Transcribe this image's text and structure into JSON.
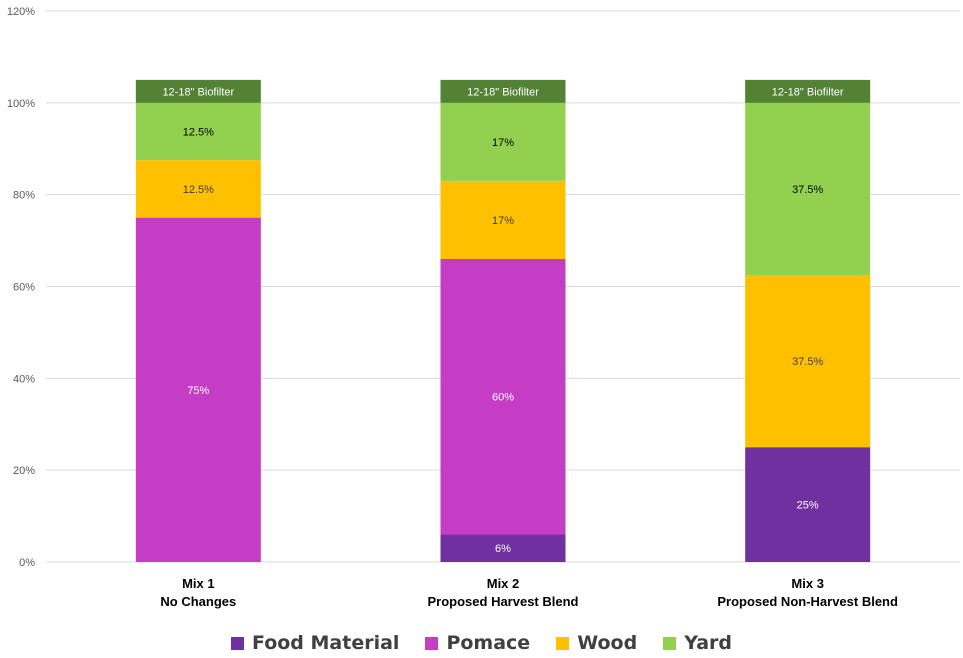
{
  "chart_data": {
    "type": "bar",
    "stacked": true,
    "categories": [
      [
        "Mix 1",
        "No Changes"
      ],
      [
        "Mix 2",
        "Proposed Harvest Blend"
      ],
      [
        "Mix 3",
        "Proposed Non-Harvest Blend"
      ]
    ],
    "series": [
      {
        "name": "Food Material",
        "color": "#7030A0",
        "values": [
          0,
          6,
          25
        ],
        "labels": [
          "",
          "6%",
          "25%"
        ],
        "label_color": "#ffffff"
      },
      {
        "name": "Pomace",
        "color": "#C53DC5",
        "values": [
          75,
          60,
          0
        ],
        "labels": [
          "75%",
          "60%",
          ""
        ],
        "label_color": "#ffffff"
      },
      {
        "name": "Wood",
        "color": "#FFC000",
        "values": [
          12.5,
          17,
          37.5
        ],
        "labels": [
          "12.5%",
          "17%",
          "37.5%"
        ],
        "label_color": "#404040"
      },
      {
        "name": "Yard",
        "color": "#92D050",
        "values": [
          12.5,
          17,
          37.5
        ],
        "labels": [
          "12.5%",
          "17%",
          "37.5%"
        ],
        "label_color": "#000000"
      }
    ],
    "cap": {
      "label": "12-18\" Biofilter",
      "color": "#548235",
      "value": 5
    },
    "ylim": [
      0,
      120
    ],
    "yticks": [
      0,
      20,
      40,
      60,
      80,
      100,
      120
    ],
    "ytick_labels": [
      "0%",
      "20%",
      "40%",
      "60%",
      "80%",
      "100%",
      "120%"
    ],
    "grid": true,
    "legend_position": "bottom"
  }
}
